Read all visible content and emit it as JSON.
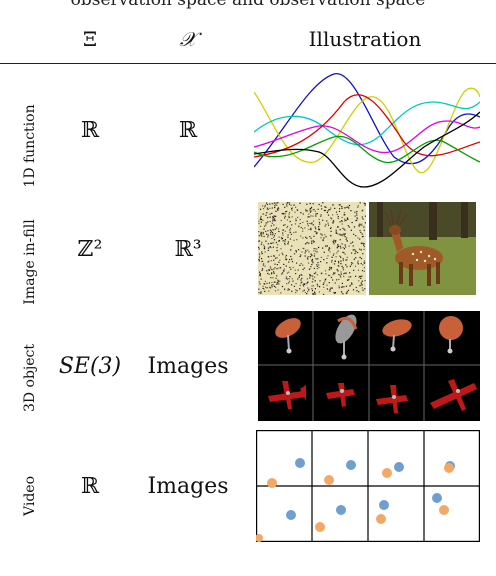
{
  "cut_header_text": "observation space and observation space",
  "columns": {
    "xi": "Ξ",
    "x": "𝒳",
    "illustration": "Illustration"
  },
  "rows": [
    {
      "label": "1D function",
      "xi": "ℝ",
      "x": "ℝ"
    },
    {
      "label": "Image in-fill",
      "xi": "ℤ²",
      "x": "ℝ³"
    },
    {
      "label": "3D object",
      "xi": "SE(3)",
      "x": "Images"
    },
    {
      "label": "Video",
      "xi": "ℝ",
      "x": "Images"
    }
  ],
  "colors": {
    "curve_colors": [
      "#1010d0",
      "#d0d000",
      "#00c8c8",
      "#e000e0",
      "#e00000",
      "#00a000",
      "#000000"
    ],
    "dot_blue": "#6f9fcf",
    "dot_orange": "#f4a868",
    "plane_red": "#c01818",
    "balloon_orange": "#c8603a"
  }
}
